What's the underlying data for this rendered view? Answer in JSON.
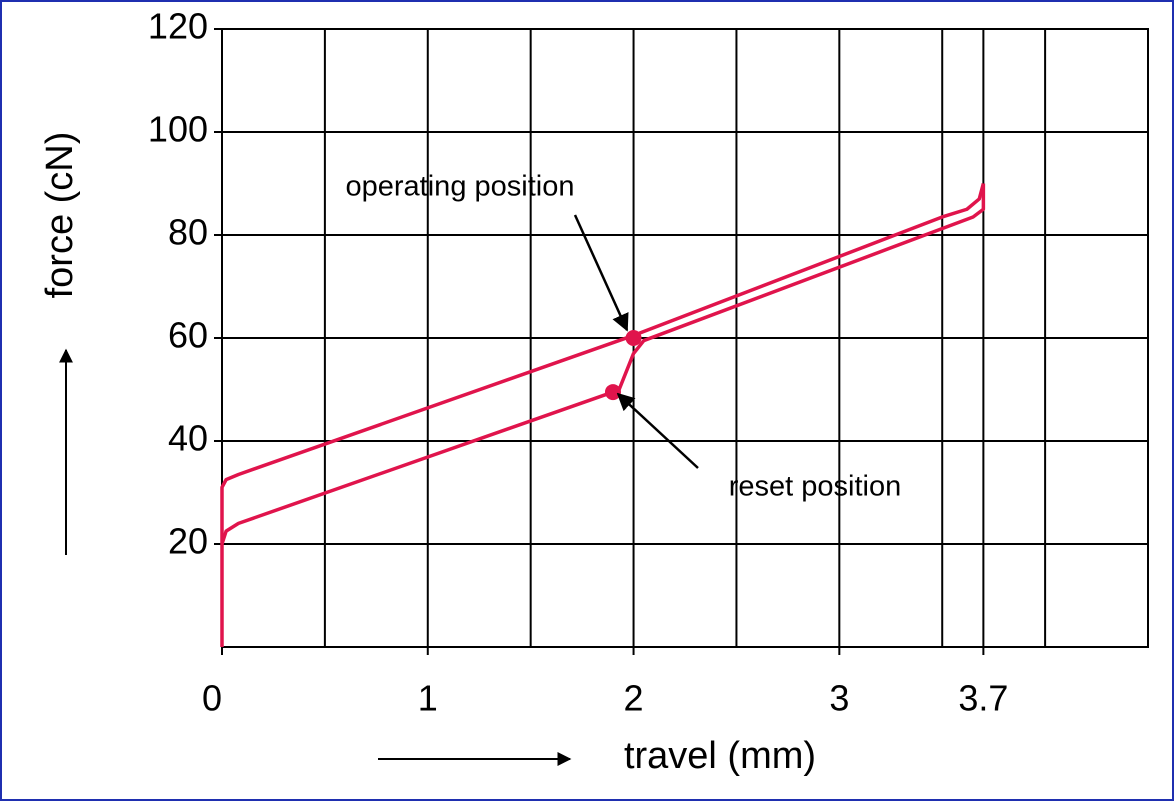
{
  "chart_data": {
    "type": "line",
    "xlabel": "travel (mm)",
    "ylabel": "force (cN)",
    "xlim": [
      0,
      4.5
    ],
    "ylim": [
      0,
      120
    ],
    "xticks": [
      0,
      1,
      2,
      3,
      3.7
    ],
    "x_minor_grid": [
      0.5,
      1.5,
      2.5,
      3.5,
      4
    ],
    "yticks": [
      20,
      40,
      60,
      80,
      100,
      120
    ],
    "grid": true,
    "color": "#e0144c",
    "series": [
      {
        "x": [
          0,
          0,
          0.02,
          0.08,
          2,
          3.5,
          3.62,
          3.68,
          3.7
        ],
        "values": [
          0,
          31,
          32.5,
          33.5,
          60.5,
          83.5,
          85,
          87,
          90
        ]
      },
      {
        "x": [
          3.7,
          3.7,
          3.65,
          2.05,
          2,
          1.93,
          1.9,
          0.08,
          0.02,
          0
        ],
        "values": [
          90,
          85,
          83.5,
          59.5,
          57,
          50,
          49.5,
          24,
          22.5,
          20
        ]
      }
    ],
    "annotations": [
      {
        "text": "operating position",
        "x": 2,
        "y": 60
      },
      {
        "text": "reset position",
        "x": 1.9,
        "y": 49.5
      }
    ]
  }
}
